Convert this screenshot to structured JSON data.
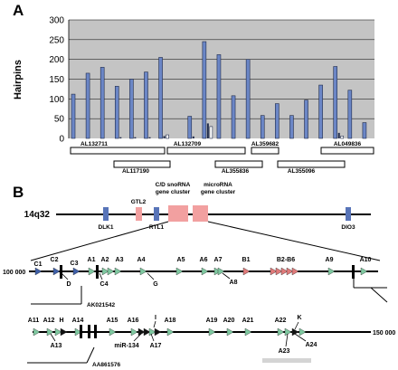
{
  "panel_a": {
    "letter": "A",
    "chart_data": {
      "type": "bar",
      "ylabel": "Hairpins",
      "ylim": [
        0,
        300
      ],
      "yticks": [
        "0",
        "50",
        "100",
        "150",
        "200",
        "250",
        "300"
      ],
      "grid": true,
      "series": [
        {
          "values": [
            112,
            165,
            180,
            132,
            150,
            168,
            205,
            0,
            56,
            245,
            212,
            108,
            200,
            58,
            88,
            58,
            97,
            135,
            182,
            122,
            40
          ]
        },
        {
          "values": [
            0,
            0,
            0,
            3,
            3,
            3,
            6,
            0,
            5,
            38,
            0,
            0,
            0,
            0,
            0,
            0,
            0,
            0,
            14,
            0,
            0
          ]
        },
        {
          "values": [
            0,
            0,
            0,
            0,
            0,
            0,
            9,
            0,
            0,
            30,
            0,
            0,
            0,
            0,
            0,
            0,
            0,
            0,
            6,
            0,
            0
          ]
        }
      ],
      "clones_top": [
        "AL132711",
        "AL132709",
        "AL359682",
        "AL049836"
      ],
      "clones_bottom": [
        "AL117190",
        "AL355836",
        "AL355096"
      ]
    }
  },
  "panel_b": {
    "letter": "B",
    "locus": "14q32",
    "genes": [
      "DLK1",
      "GTL2",
      "RTL1",
      "DIO3"
    ],
    "cluster_labels": {
      "snorna": [
        "C/D snoRNA",
        "gene cluster"
      ],
      "microrna": [
        "microRNA",
        "gene cluster"
      ]
    },
    "row1": {
      "coord": "100 000",
      "top_labels": [
        "C1",
        "C2",
        "C3",
        "A1",
        "A2",
        "A3",
        "A4",
        "A5",
        "A6",
        "A7",
        "B1",
        "B2-B6",
        "A9",
        "A10"
      ],
      "bottom_labels": [
        "D",
        "C4",
        "G",
        "A8"
      ],
      "est": "AK021542"
    },
    "row2": {
      "coord": "150 000",
      "top_labels": [
        "A11",
        "A12",
        "H",
        "A14",
        "A15",
        "A16",
        "I",
        "A18",
        "A19",
        "A20",
        "A21",
        "A22",
        "K"
      ],
      "bottom_labels": [
        "A13",
        "miR-134",
        "A17",
        "A23",
        "A24"
      ],
      "est": "AA861576"
    },
    "colors": {
      "gene_blue": "#5874b8",
      "cluster_pink": "#f2a0a0",
      "green_marker": "#7fc8a0",
      "blue_marker": "#3e5fa8",
      "red_marker": "#e07a7a",
      "bar_blue": "#6b86c6",
      "plot_bg": "#c4c4c4"
    }
  }
}
